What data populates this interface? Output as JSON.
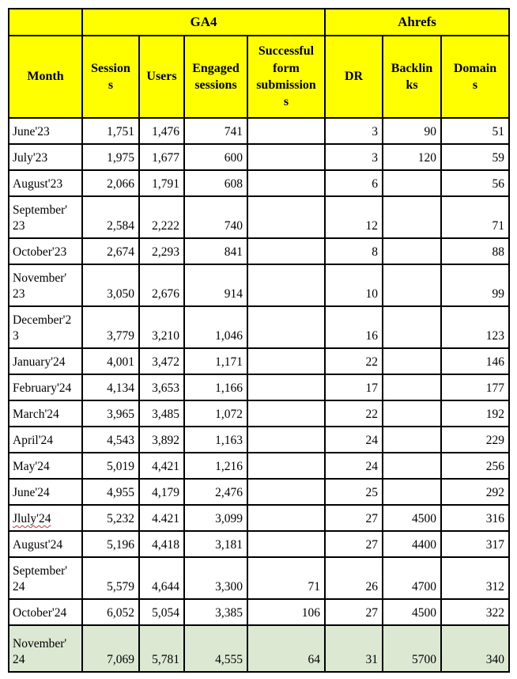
{
  "table": {
    "corner_label": "",
    "header_groups": [
      {
        "label": "GA4",
        "span": 4
      },
      {
        "label": "Ahrefs",
        "span": 3
      }
    ],
    "columns": [
      {
        "key": "month",
        "label": "Month"
      },
      {
        "key": "sessions",
        "label": "Session\ns"
      },
      {
        "key": "users",
        "label": "Users"
      },
      {
        "key": "engaged-sessions",
        "label": "Engaged\nsessions"
      },
      {
        "key": "form-submissions",
        "label": "Successful\nform\nsubmission\ns"
      },
      {
        "key": "dr",
        "label": "DR"
      },
      {
        "key": "backlinks",
        "label": "Backlin\nks"
      },
      {
        "key": "domains",
        "label": "Domain\ns"
      }
    ],
    "rows": [
      {
        "month": "June'23",
        "values": [
          "1,751",
          "1,476",
          "741",
          "",
          "3",
          "90",
          "51"
        ]
      },
      {
        "month": "July'23",
        "values": [
          "1,975",
          "1,677",
          "600",
          "",
          "3",
          "120",
          "59"
        ]
      },
      {
        "month": "August'23",
        "values": [
          "2,066",
          "1,791",
          "608",
          "",
          "6",
          "",
          "56"
        ]
      },
      {
        "month": "September'\n23",
        "values": [
          "2,584",
          "2,222",
          "740",
          "",
          "12",
          "",
          "71"
        ]
      },
      {
        "month": "October'23",
        "values": [
          "2,674",
          "2,293",
          "841",
          "",
          "8",
          "",
          "88"
        ]
      },
      {
        "month": "November'\n23",
        "values": [
          "3,050",
          "2,676",
          "914",
          "",
          "10",
          "",
          "99"
        ]
      },
      {
        "month": "December'2\n3",
        "values": [
          "3,779",
          "3,210",
          "1,046",
          "",
          "16",
          "",
          "123"
        ]
      },
      {
        "month": "January'24",
        "values": [
          "4,001",
          "3,472",
          "1,171",
          "",
          "22",
          "",
          "146"
        ]
      },
      {
        "month": "February'24",
        "values": [
          "4,134",
          "3,653",
          "1,166",
          "",
          "17",
          "",
          "177"
        ]
      },
      {
        "month": "March'24",
        "values": [
          "3,965",
          "3,485",
          "1,072",
          "",
          "22",
          "",
          "192"
        ]
      },
      {
        "month": "April'24",
        "values": [
          "4,543",
          "3,892",
          "1,163",
          "",
          "24",
          "",
          "229"
        ]
      },
      {
        "month": "May'24",
        "values": [
          "5,019",
          "4,421",
          "1,216",
          "",
          "24",
          "",
          "256"
        ]
      },
      {
        "month": "June'24",
        "values": [
          "4,955",
          "4,179",
          "2,476",
          "",
          "25",
          "",
          "292"
        ]
      },
      {
        "month": "Jluly'24",
        "misspelled": true,
        "values": [
          "5,232",
          "4.421",
          "3,099",
          "",
          "27",
          "4500",
          "316"
        ]
      },
      {
        "month": "August'24",
        "values": [
          "5,196",
          "4,418",
          "3,181",
          "",
          "27",
          "4400",
          "317"
        ]
      },
      {
        "month": "September'\n24",
        "values": [
          "5,579",
          "4,644",
          "3,300",
          "71",
          "26",
          "4700",
          "312"
        ]
      },
      {
        "month": "October'24",
        "values": [
          "6,052",
          "5,054",
          "3,385",
          "106",
          "27",
          "4500",
          "322"
        ]
      },
      {
        "month": "November'\n24",
        "highlight": true,
        "values": [
          "7,069",
          "5,781",
          "4,555",
          "64",
          "31",
          "5700",
          "340"
        ]
      }
    ],
    "colors": {
      "header_bg": "#FFFF00",
      "highlight_row_bg": "#DCE8D2",
      "border": "#000000",
      "spellcheck_underline": "#D13438"
    }
  }
}
